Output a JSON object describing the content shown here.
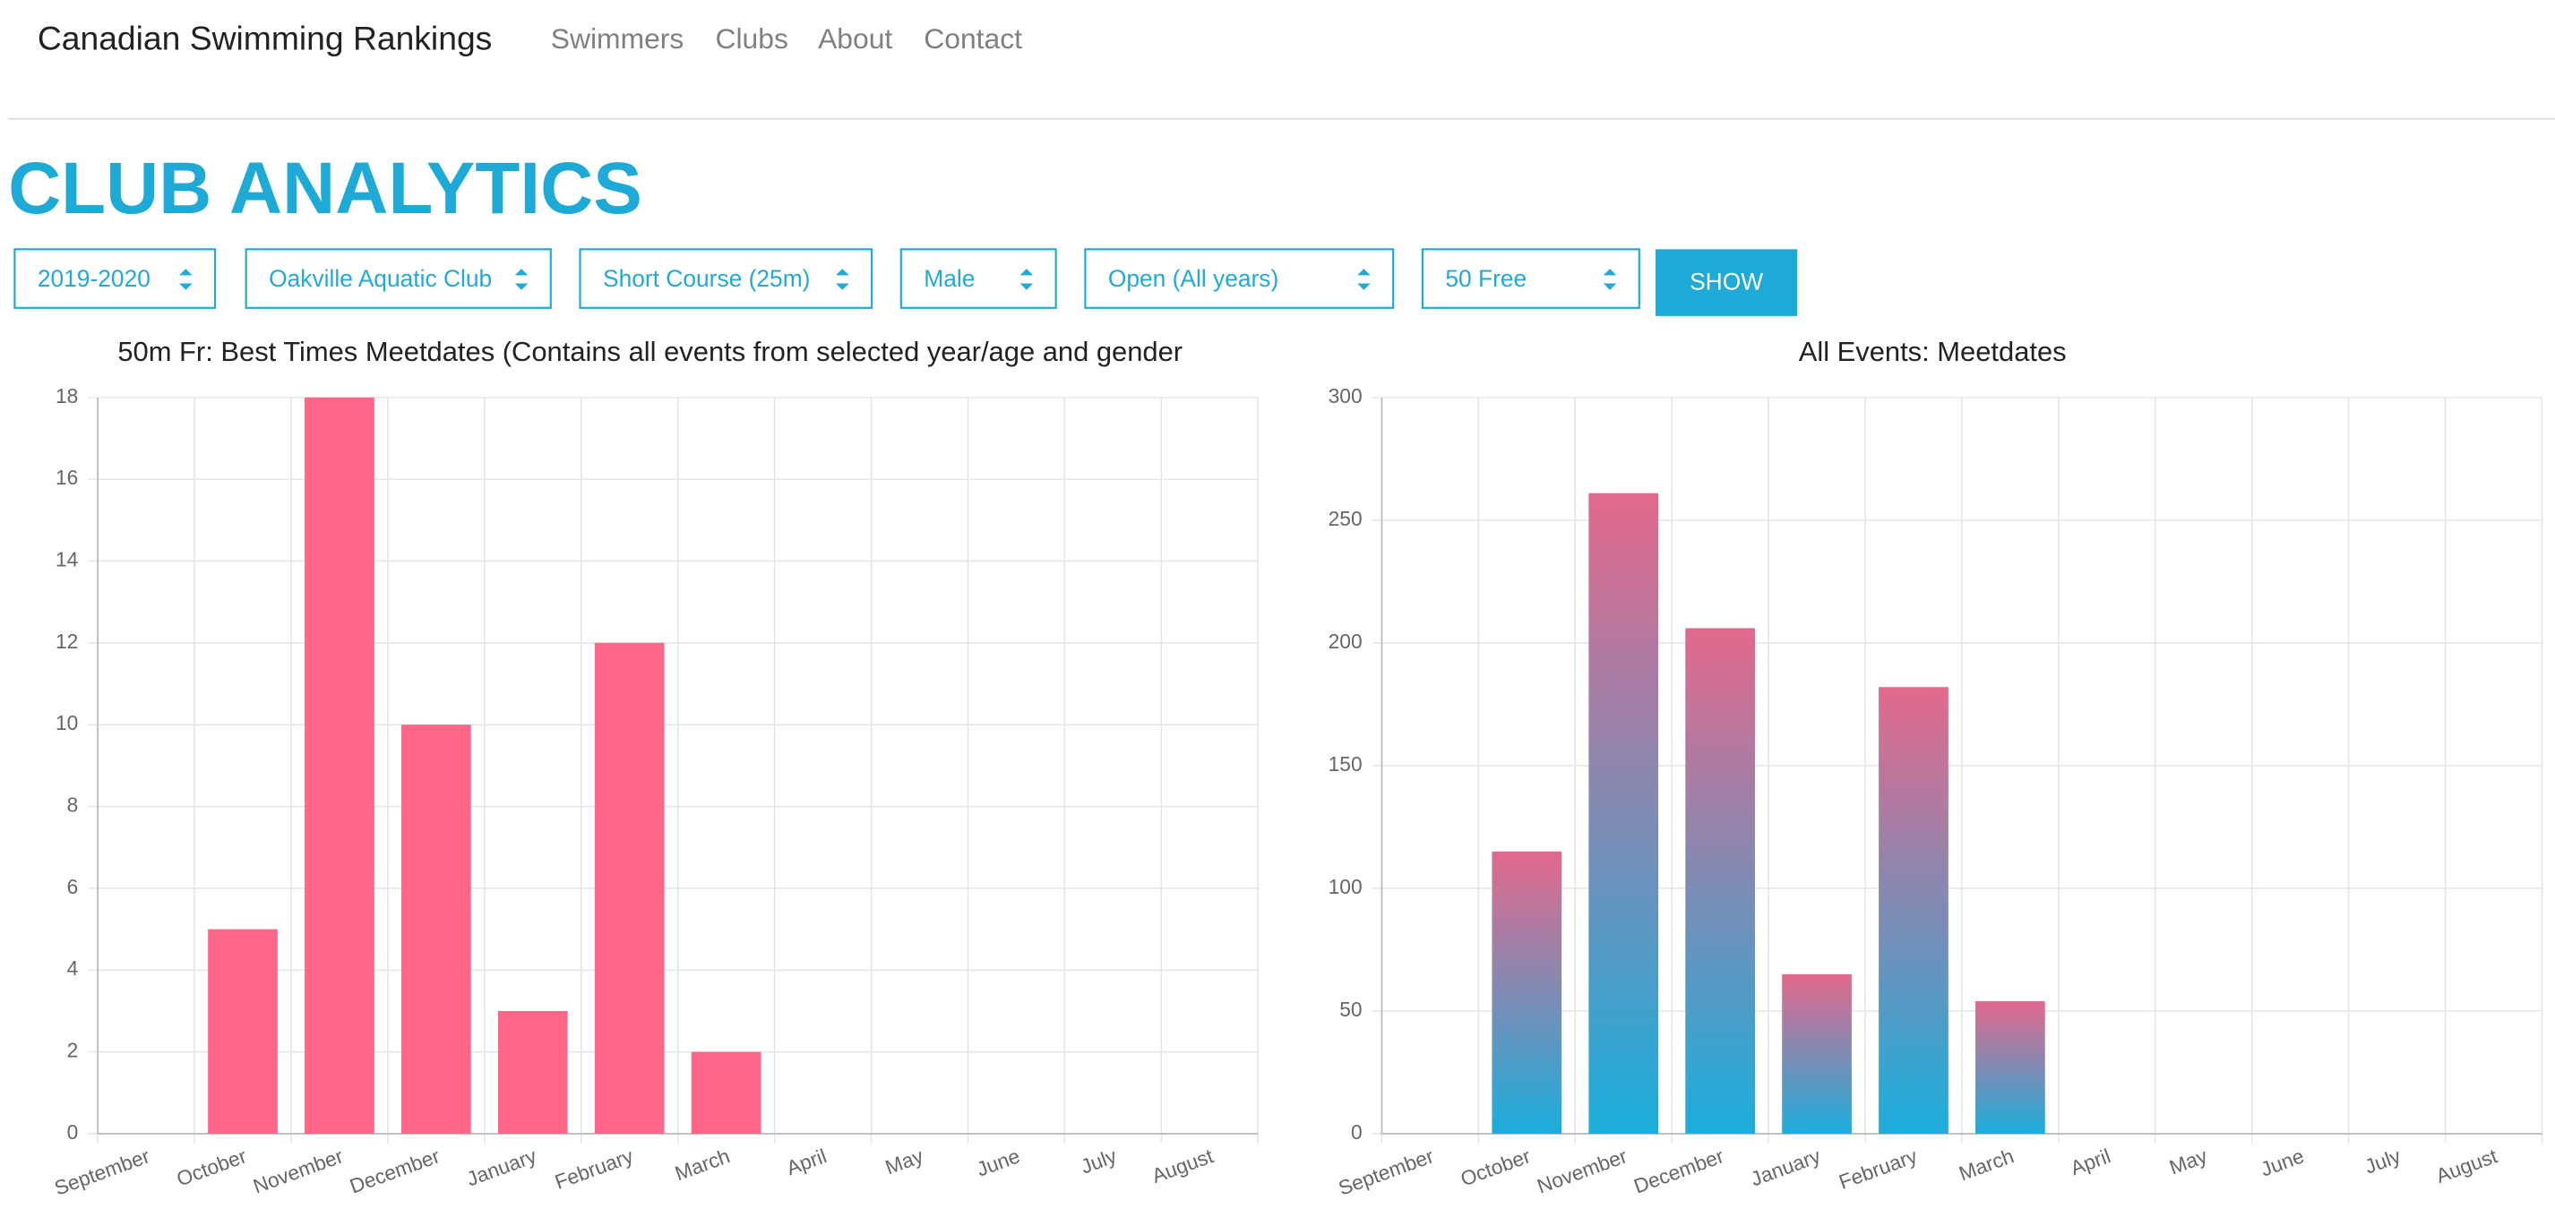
{
  "nav": {
    "brand": "Canadian Swimming Rankings",
    "links": [
      "Swimmers",
      "Clubs",
      "About",
      "Contact"
    ]
  },
  "page_title": "CLUB ANALYTICS",
  "filters": [
    "2019-2020",
    "Oakville Aquatic Club",
    "Short Course (25m)",
    "Male",
    "Open (All years)",
    "50 Free"
  ],
  "button": "SHOW",
  "chart_data": [
    {
      "type": "bar",
      "title": "50m Fr: Best Times Meetdates (Contains all events from selected year/age and gender",
      "categories": [
        "September",
        "October",
        "November",
        "December",
        "January",
        "February",
        "March",
        "April",
        "May",
        "June",
        "July",
        "August"
      ],
      "values": [
        0,
        5,
        18,
        10,
        3,
        12,
        2,
        0,
        0,
        0,
        0,
        0
      ],
      "color": "#ff6687",
      "ylim": [
        0,
        18
      ],
      "yticks": [
        0,
        2,
        4,
        6,
        8,
        10,
        12,
        14,
        16,
        18
      ],
      "grid": true
    },
    {
      "type": "gradient-bar",
      "title": "All Events: Meetdates",
      "categories": [
        "September",
        "October",
        "November",
        "December",
        "January",
        "February",
        "March",
        "April",
        "May",
        "June",
        "July",
        "August"
      ],
      "values": [
        0,
        115,
        261,
        206,
        65,
        182,
        54,
        0,
        0,
        0,
        0,
        0
      ],
      "gradient": [
        "#1aaedc",
        "#e4688c"
      ],
      "ylim": [
        0,
        300
      ],
      "yticks": [
        0,
        50,
        100,
        150,
        200,
        250,
        300
      ],
      "grid": true
    }
  ]
}
